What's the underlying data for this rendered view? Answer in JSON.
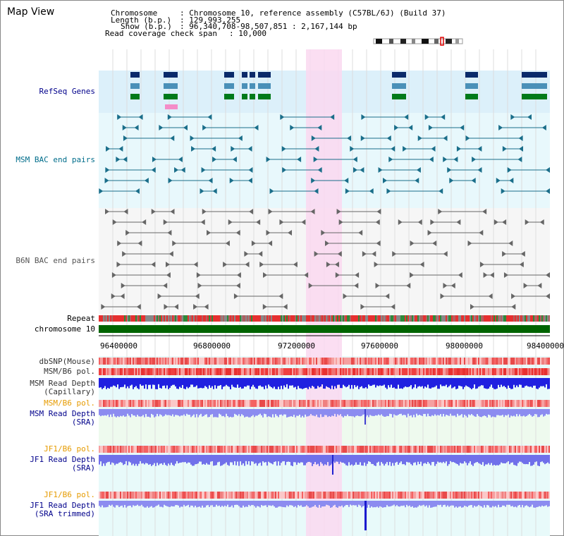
{
  "header": {
    "title": "Map View",
    "chromosome_key": "Chromosome",
    "chromosome_val": ": Chromosome 10, reference assembly (C57BL/6J) (Build 37)",
    "length_key": "Length (b.p.)",
    "length_val": ": 129,993,255",
    "show_key": "Show (b.p.)",
    "show_val": ": 96,340,708-98,507,851 : 2,167,144 bp",
    "coverage_key": "Read coverage check span",
    "coverage_val": ": 10,000"
  },
  "tracks": {
    "refseq": "RefSeq Genes",
    "msm_bac": "MSM BAC end pairs",
    "b6n_bac": "B6N BAC end pairs",
    "repeat": "Repeat",
    "chromosome": "chromosome 10",
    "dbsnp": "dbSNP(Mouse)",
    "msm_b6_pol": "MSM/B6 pol.",
    "msm_depth_cap_1": "MSM Read Depth",
    "msm_depth_cap_2": "(Capillary)",
    "msm_b6_pol_2": "MSM/B6 pol.",
    "msm_depth_sra_1": "MSM Read Depth",
    "msm_depth_sra_2": "(SRA)",
    "jf1_b6_pol": "JF1/B6 pol.",
    "jf1_depth_sra_1": "JF1 Read Depth",
    "jf1_depth_sra_2": "(SRA)",
    "jf1_b6_pol_2": "JF1/B6 pol.",
    "jf1_depth_trim_1": "JF1 Read Depth",
    "jf1_depth_trim_2": "(SRA trimmed)"
  },
  "axis": {
    "ticks": [
      "96400000",
      "96800000",
      "97200000",
      "97600000",
      "98000000",
      "98400000"
    ]
  },
  "colors": {
    "refseq_bg": "#dcf0fa",
    "msm_bg": "#e8f8fc",
    "highlight": "#fad8f0",
    "chrom_bar": "#006400",
    "depth_blue": "#2020e0",
    "depth_light": "#8c8cf0",
    "snp_red": "#e84a4a",
    "pol_orange": "#e69b00",
    "label_navy": "#00008b",
    "label_teal": "#006d8b"
  }
}
